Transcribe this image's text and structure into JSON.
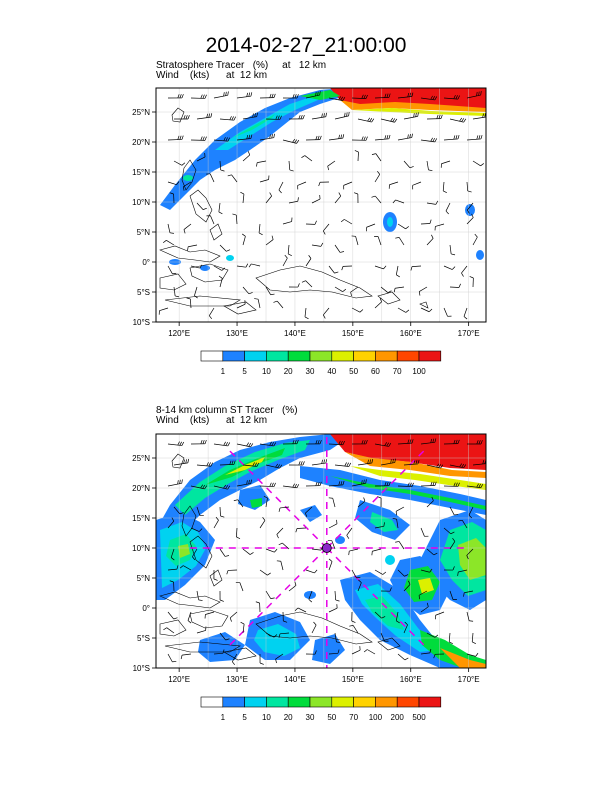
{
  "figure": {
    "title": "2014-02-27_21:00:00"
  },
  "panels": [
    {
      "title_line1": "Stratosphere Tracer   (%)     at   12 km",
      "title_line2": "Wind    (kts)      at  12 km",
      "lon_ticks": [
        "120°E",
        "130°E",
        "140°E",
        "150°E",
        "160°E",
        "170°E"
      ],
      "lat_ticks": [
        "25°N",
        "20°N",
        "15°N",
        "10°N",
        "5°N",
        "0°",
        "5°S",
        "10°S"
      ],
      "colorbar": {
        "labels": [
          "1",
          "5",
          "10",
          "20",
          "30",
          "40",
          "50",
          "60",
          "70",
          "100"
        ],
        "colors": [
          "#ffffff",
          "#1e82ff",
          "#00d2f0",
          "#00e6a0",
          "#00dc3c",
          "#8ce628",
          "#dcf000",
          "#ffd200",
          "#ff9600",
          "#ff4600",
          "#eb1414"
        ]
      },
      "has_storm_marker": false
    },
    {
      "title_line1": "8-14 km column ST Tracer   (%)",
      "title_line2": "Wind    (kts)      at  12 km",
      "lon_ticks": [
        "120°E",
        "130°E",
        "140°E",
        "150°E",
        "160°E",
        "170°E"
      ],
      "lat_ticks": [
        "25°N",
        "20°N",
        "15°N",
        "10°N",
        "5°N",
        "0°",
        "5°S",
        "10°S"
      ],
      "colorbar": {
        "labels": [
          "1",
          "5",
          "10",
          "20",
          "30",
          "50",
          "70",
          "100",
          "200",
          "500"
        ],
        "colors": [
          "#ffffff",
          "#1e82ff",
          "#00d2f0",
          "#00e6a0",
          "#00dc3c",
          "#8ce628",
          "#dcf000",
          "#ffd200",
          "#ff9600",
          "#ff4600",
          "#eb1414"
        ]
      },
      "has_storm_marker": true,
      "storm_marker_color": "#e600e6"
    }
  ],
  "map_extent": {
    "lon_min": 116,
    "lon_max": 173,
    "lat_min": -10,
    "lat_max": 29
  },
  "colors": {
    "wind_barb": "#000000",
    "grid": "#cccccc",
    "coastline": "#000000"
  }
}
